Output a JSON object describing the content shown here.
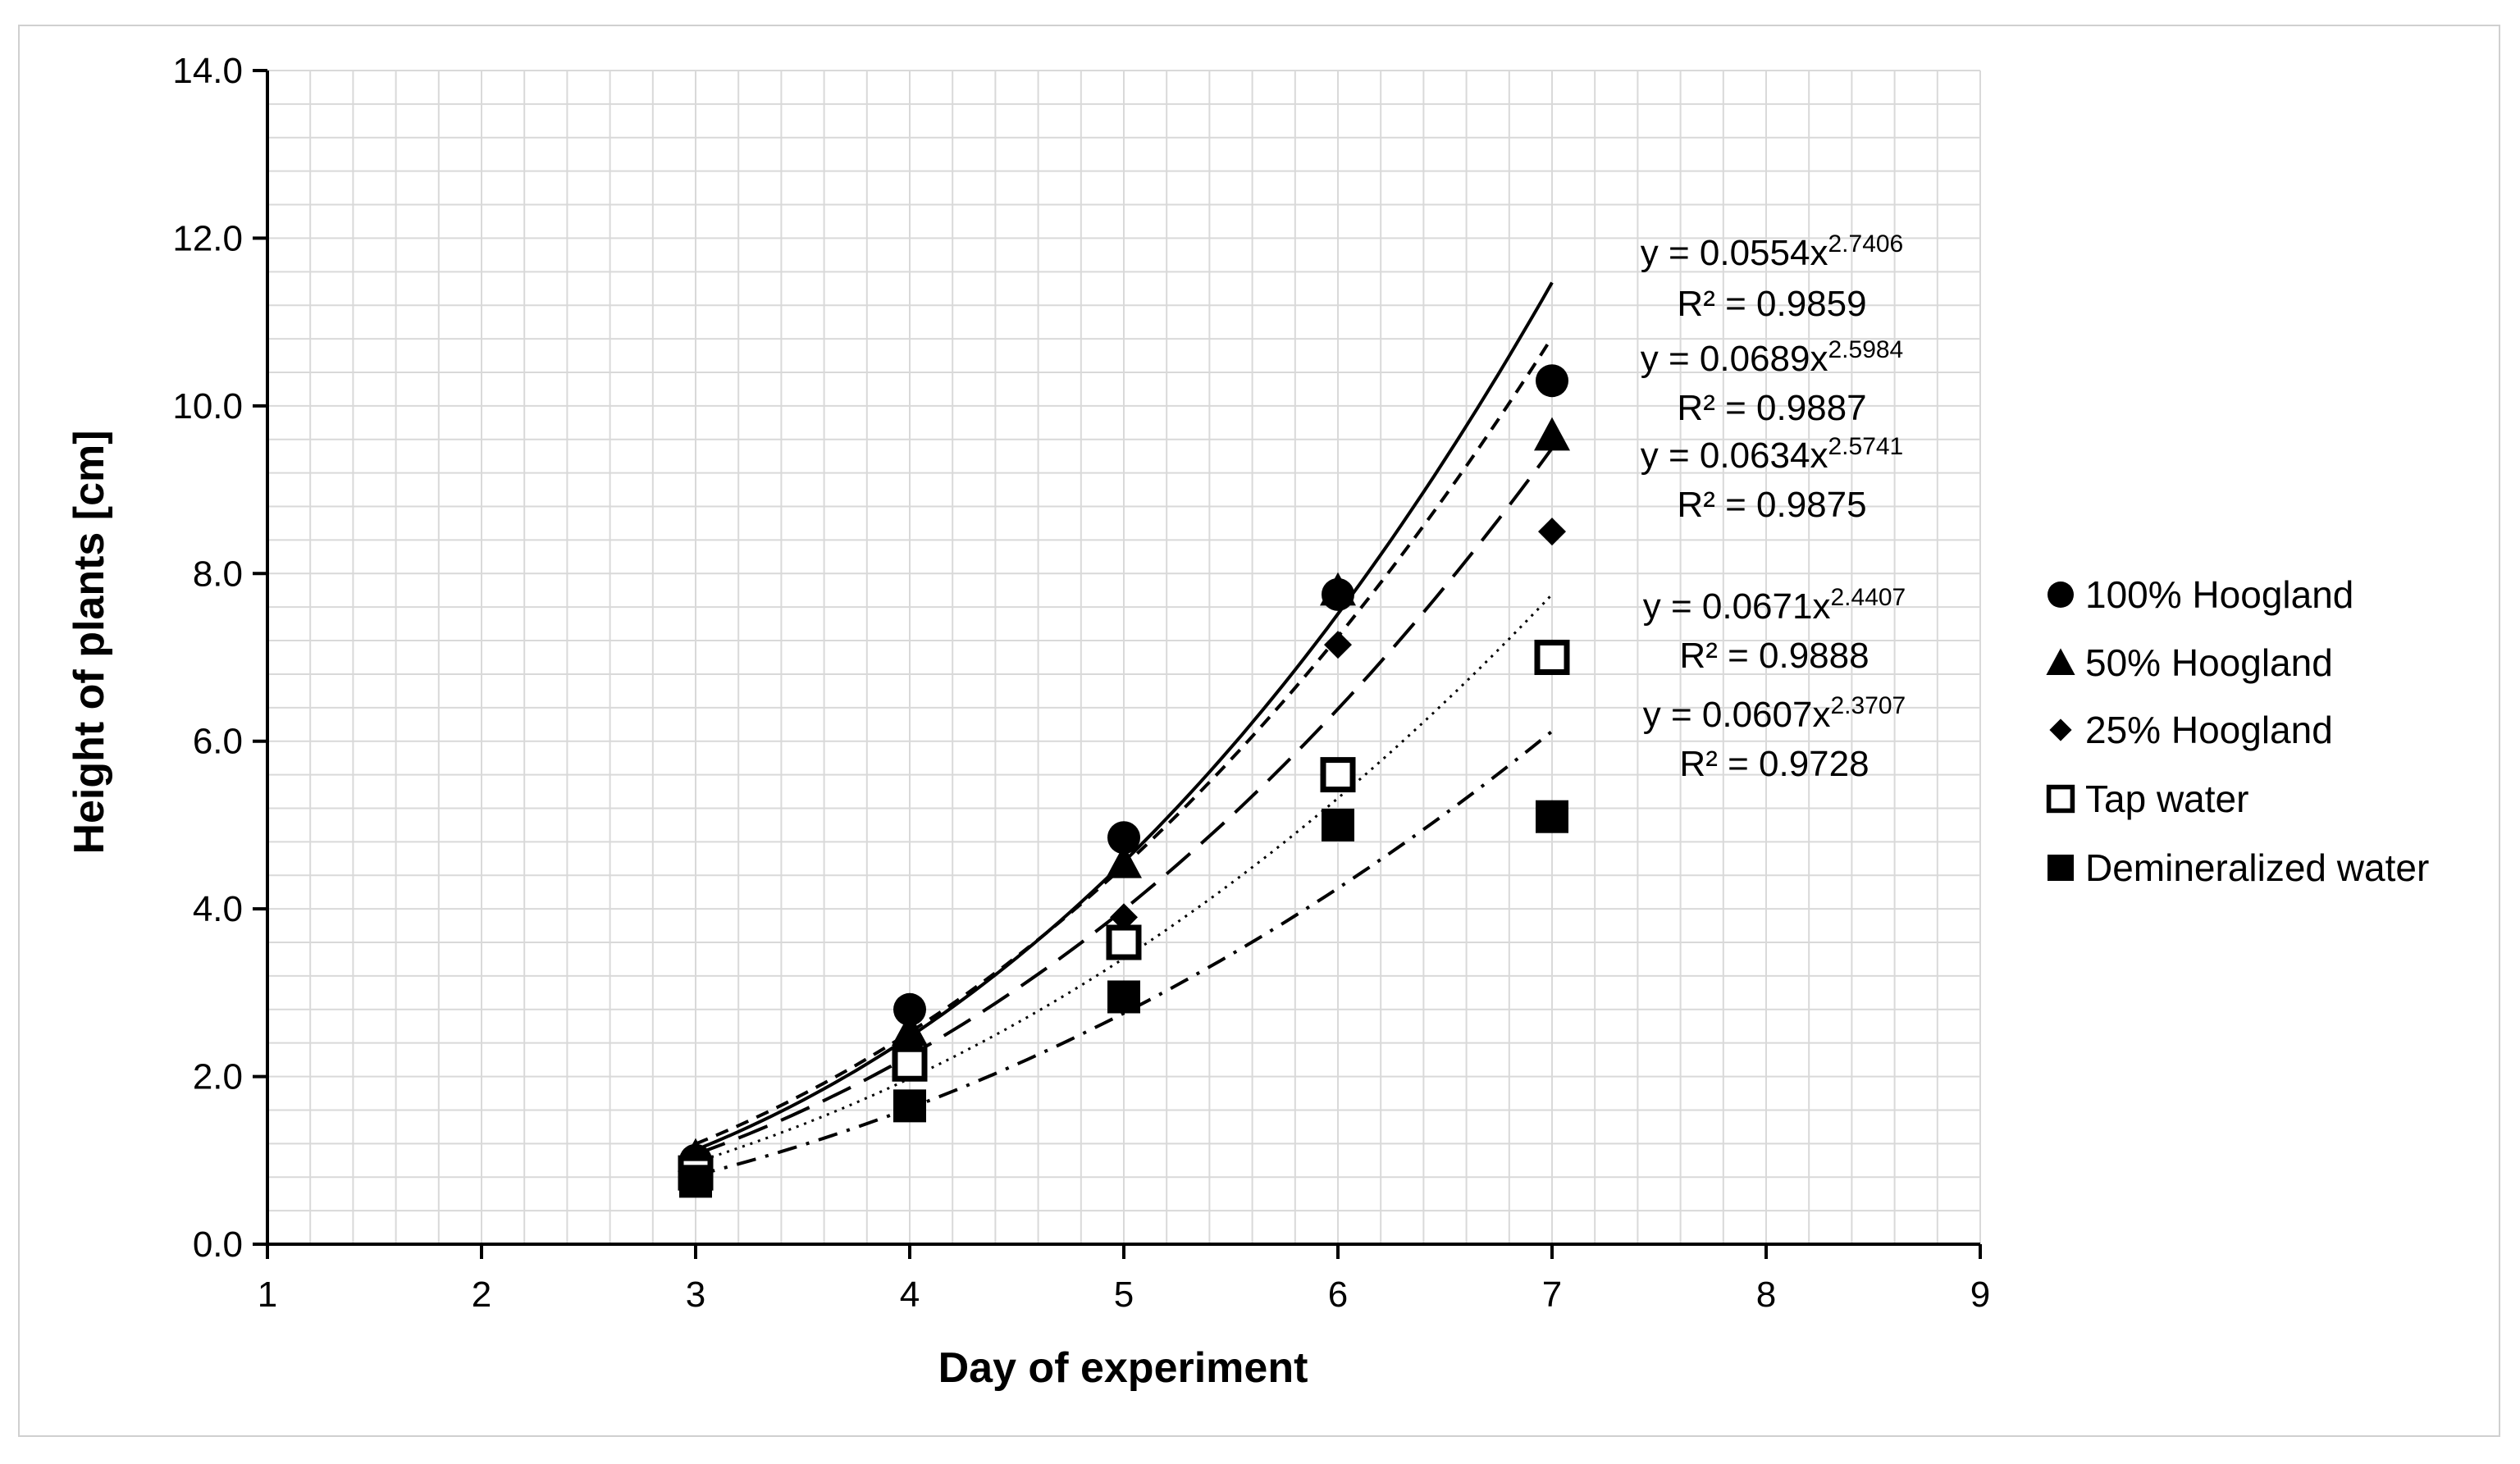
{
  "chart_data": {
    "type": "scatter",
    "xlabel": "Day of experiment",
    "ylabel": "Height of plants [cm]",
    "xlim": [
      1,
      9
    ],
    "ylim": [
      0,
      14
    ],
    "x_ticks": [
      "1",
      "2",
      "3",
      "4",
      "5",
      "6",
      "7",
      "8",
      "9"
    ],
    "y_ticks": [
      "0.0",
      "2.0",
      "4.0",
      "6.0",
      "8.0",
      "10.0",
      "12.0",
      "14.0"
    ],
    "grid": true,
    "legend_position": "right",
    "series": [
      {
        "name": "100% Hoogland",
        "marker": "circle",
        "x": [
          3,
          4,
          5,
          6,
          7
        ],
        "y": [
          1.0,
          2.8,
          4.85,
          7.75,
          10.3
        ],
        "fit": {
          "a": 0.0554,
          "b": 2.7406,
          "style": "solid"
        },
        "equation": "y = 0.0554x",
        "exponent": "2.7406",
        "r2": "R² = 0.9859"
      },
      {
        "name": "50% Hoogland",
        "marker": "triangle",
        "x": [
          3,
          4,
          5,
          6,
          7
        ],
        "y": [
          1.05,
          2.55,
          4.55,
          7.8,
          9.65
        ],
        "fit": {
          "a": 0.0689,
          "b": 2.5984,
          "style": "short-dash"
        },
        "equation": "y = 0.0689x",
        "exponent": "2.5984",
        "r2": "R² = 0.9887"
      },
      {
        "name": "25% Hoogland",
        "marker": "diamond",
        "x": [
          3,
          4,
          5,
          6,
          7
        ],
        "y": [
          0.95,
          2.35,
          3.9,
          7.15,
          8.5
        ],
        "fit": {
          "a": 0.0634,
          "b": 2.5741,
          "style": "long-dash"
        },
        "equation": "y = 0.0634x",
        "exponent": "2.5741",
        "r2": "R² = 0.9875"
      },
      {
        "name": "Tap water",
        "marker": "open-square",
        "x": [
          3,
          4,
          5,
          6,
          7
        ],
        "y": [
          0.85,
          2.15,
          3.6,
          5.6,
          7.0
        ],
        "fit": {
          "a": 0.0671,
          "b": 2.4407,
          "style": "dotted"
        },
        "equation": "y = 0.0671x",
        "exponent": "2.4407",
        "r2": "R² = 0.9888"
      },
      {
        "name": "Demineralized water",
        "marker": "filled-square",
        "x": [
          3,
          4,
          5,
          6,
          7
        ],
        "y": [
          0.75,
          1.65,
          2.95,
          5.0,
          5.1
        ],
        "fit": {
          "a": 0.0607,
          "b": 2.3707,
          "style": "dash-dot"
        },
        "equation": "y = 0.0607x",
        "exponent": "2.3707",
        "r2": "R² = 0.9728"
      }
    ]
  },
  "colors": {
    "ink": "#000000",
    "grid": "#d9d9d9",
    "frame": "#d0d0d0",
    "background": "#ffffff"
  }
}
